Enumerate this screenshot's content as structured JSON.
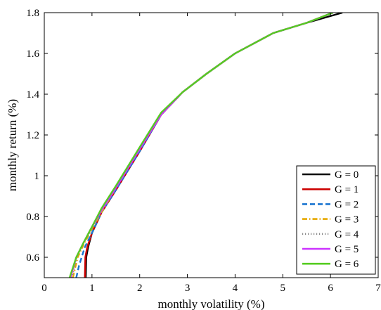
{
  "chart_data": {
    "type": "line",
    "title": "",
    "xlabel": "monthly volatility (%)",
    "ylabel": "monthly return (%)",
    "xlim": [
      0,
      7
    ],
    "ylim": [
      0.5,
      1.8
    ],
    "xticks": [
      "0",
      "1",
      "2",
      "3",
      "4",
      "5",
      "6",
      "7"
    ],
    "yticks": [
      "0.6",
      "0.8",
      "1",
      "1.2",
      "1.4",
      "1.6",
      "1.8"
    ],
    "grid": false,
    "legend_position": "bottom-right",
    "series": [
      {
        "name": "G = 0",
        "color": "#000000",
        "dash": "solid",
        "x": [
          0.87,
          0.88,
          0.92,
          1.0,
          1.2,
          1.5,
          2.0,
          2.45,
          2.9,
          3.4,
          4.0,
          4.8,
          5.5,
          6.25
        ],
        "y": [
          0.5,
          0.6,
          0.65,
          0.72,
          0.82,
          0.93,
          1.12,
          1.3,
          1.41,
          1.5,
          1.6,
          1.7,
          1.75,
          1.8
        ]
      },
      {
        "name": "G = 1",
        "color": "#cc0000",
        "dash": "solid",
        "x": [
          0.85,
          0.86,
          0.9,
          1.0,
          1.2,
          1.5,
          2.0,
          2.45,
          2.9,
          3.4,
          4.0,
          4.8,
          5.5,
          6.05
        ],
        "y": [
          0.5,
          0.6,
          0.65,
          0.72,
          0.82,
          0.93,
          1.12,
          1.3,
          1.41,
          1.5,
          1.6,
          1.7,
          1.75,
          1.8
        ]
      },
      {
        "name": "G = 2",
        "color": "#1a75d1",
        "dash": "dashed",
        "x": [
          0.67,
          0.73,
          0.85,
          1.0,
          1.2,
          1.5,
          2.0,
          2.45,
          2.9,
          3.4,
          4.0,
          4.8,
          5.5,
          6.05
        ],
        "y": [
          0.5,
          0.56,
          0.65,
          0.72,
          0.82,
          0.93,
          1.12,
          1.3,
          1.41,
          1.5,
          1.6,
          1.7,
          1.75,
          1.8
        ]
      },
      {
        "name": "G = 3",
        "color": "#e6a800",
        "dash": "dashdot",
        "x": [
          0.6,
          0.7,
          0.82,
          1.0,
          1.2,
          1.5,
          2.0,
          2.45,
          2.9,
          3.4,
          4.0,
          4.8,
          5.5,
          6.05
        ],
        "y": [
          0.5,
          0.6,
          0.66,
          0.74,
          0.82,
          0.94,
          1.13,
          1.3,
          1.41,
          1.5,
          1.6,
          1.7,
          1.75,
          1.8
        ]
      },
      {
        "name": "G = 4",
        "color": "#888888",
        "dash": "dotted",
        "x": [
          0.58,
          0.68,
          0.82,
          1.0,
          1.2,
          1.5,
          2.0,
          2.45,
          2.9,
          3.4,
          4.0,
          4.8,
          5.5,
          6.05
        ],
        "y": [
          0.5,
          0.6,
          0.67,
          0.74,
          0.83,
          0.94,
          1.13,
          1.3,
          1.41,
          1.5,
          1.6,
          1.7,
          1.75,
          1.8
        ]
      },
      {
        "name": "G = 5",
        "color": "#cc33ff",
        "dash": "solid",
        "x": [
          0.55,
          0.67,
          0.82,
          1.0,
          1.2,
          1.5,
          2.0,
          2.45,
          2.9,
          3.4,
          4.0,
          4.8,
          5.5,
          6.05
        ],
        "y": [
          0.5,
          0.6,
          0.67,
          0.75,
          0.83,
          0.94,
          1.13,
          1.3,
          1.41,
          1.5,
          1.6,
          1.7,
          1.75,
          1.8
        ]
      },
      {
        "name": "G = 6",
        "color": "#55cc22",
        "dash": "solid",
        "x": [
          0.53,
          0.67,
          0.82,
          1.0,
          1.2,
          1.5,
          2.0,
          2.45,
          2.9,
          3.4,
          4.0,
          4.8,
          5.5,
          6.05
        ],
        "y": [
          0.5,
          0.6,
          0.67,
          0.75,
          0.84,
          0.95,
          1.14,
          1.31,
          1.41,
          1.5,
          1.6,
          1.7,
          1.75,
          1.8
        ]
      }
    ]
  }
}
